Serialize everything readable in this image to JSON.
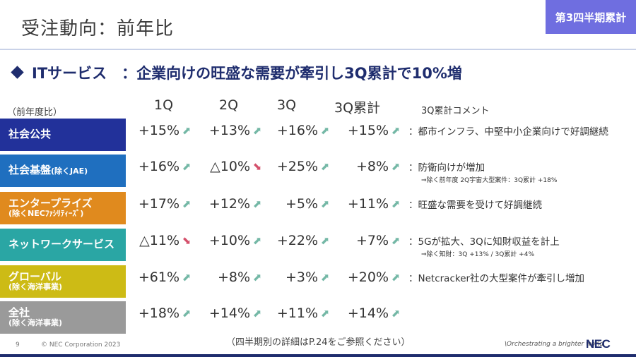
{
  "title": "受注動向：前年比",
  "badge": "第3四半期累計",
  "headline": "ITサービス　：企業向けの旺盛な需要が牽引し3Q累計で10%増",
  "yoy_label": "（前年度比）",
  "columns": [
    "1Q",
    "2Q",
    "3Q",
    "3Q累計",
    "3Q累計コメント"
  ],
  "colors": {
    "social_public": "#22319a",
    "social_infra": "#1f6fbf",
    "enterprise": "#e08a1e",
    "network": "#2aa6a4",
    "global": "#cdbb15",
    "total": "#9a9a9a",
    "up_arrow": "#74b8a6",
    "down_arrow": "#d4506b"
  },
  "rows": [
    {
      "label": "社会公共",
      "label_suffix": "",
      "sub": "",
      "values": [
        {
          "text": "+15%",
          "dir": "up"
        },
        {
          "text": "+13%",
          "dir": "up"
        },
        {
          "text": "+16%",
          "dir": "up"
        },
        {
          "text": "+15%",
          "dir": "up"
        }
      ],
      "comment": "：都市インフラ、中堅中小企業向けで好調継続",
      "note": ""
    },
    {
      "label": "社会基盤",
      "label_suffix": "(除くJAE)",
      "sub": "",
      "values": [
        {
          "text": "+16%",
          "dir": "up"
        },
        {
          "text": "△10%",
          "dir": "down"
        },
        {
          "text": "+25%",
          "dir": "up"
        },
        {
          "text": "+8%",
          "dir": "up"
        }
      ],
      "comment": "：防衛向けが増加",
      "note": "⇒除く前年度 2Q宇宙大型案件：3Q累計 +18%"
    },
    {
      "label": "エンタープライズ",
      "label_suffix": "",
      "sub": "(除くNECﾌｧｼﾘﾃｨｰｽﾞ)",
      "values": [
        {
          "text": "+17%",
          "dir": "up"
        },
        {
          "text": "+12%",
          "dir": "up"
        },
        {
          "text": "+5%",
          "dir": "up"
        },
        {
          "text": "+11%",
          "dir": "up"
        }
      ],
      "comment": "：旺盛な需要を受けて好調継続",
      "note": ""
    },
    {
      "label": "ネットワークサービス",
      "label_suffix": "",
      "sub": "",
      "values": [
        {
          "text": "△11%",
          "dir": "down"
        },
        {
          "text": "+10%",
          "dir": "up"
        },
        {
          "text": "+22%",
          "dir": "up"
        },
        {
          "text": "+7%",
          "dir": "up"
        }
      ],
      "comment": "：5Gが拡大、3Qに知財収益を計上",
      "note": "⇒除く知財：3Q +13% / 3Q累計 +4%"
    },
    {
      "label": "グローバル",
      "label_suffix": "",
      "sub": "(除く海洋事業)",
      "values": [
        {
          "text": "+61%",
          "dir": "up"
        },
        {
          "text": "+8%",
          "dir": "up"
        },
        {
          "text": "+3%",
          "dir": "up"
        },
        {
          "text": "+20%",
          "dir": "up"
        }
      ],
      "comment": "：Netcracker社の大型案件が牽引し増加",
      "note": ""
    },
    {
      "label": "全社",
      "label_suffix": "",
      "sub": "(除く海洋事業)",
      "values": [
        {
          "text": "+18%",
          "dir": "up"
        },
        {
          "text": "+14%",
          "dir": "up"
        },
        {
          "text": "+11%",
          "dir": "up"
        },
        {
          "text": "+14%",
          "dir": "up"
        }
      ],
      "comment": "",
      "note": ""
    }
  ],
  "footer_note": "（四半期別の詳細はP.24をご参照ください）",
  "page_number": "9",
  "copyright": "© NEC Corporation 2023",
  "tagline": "\\Orchestrating a brighter world",
  "logo": "NEC"
}
